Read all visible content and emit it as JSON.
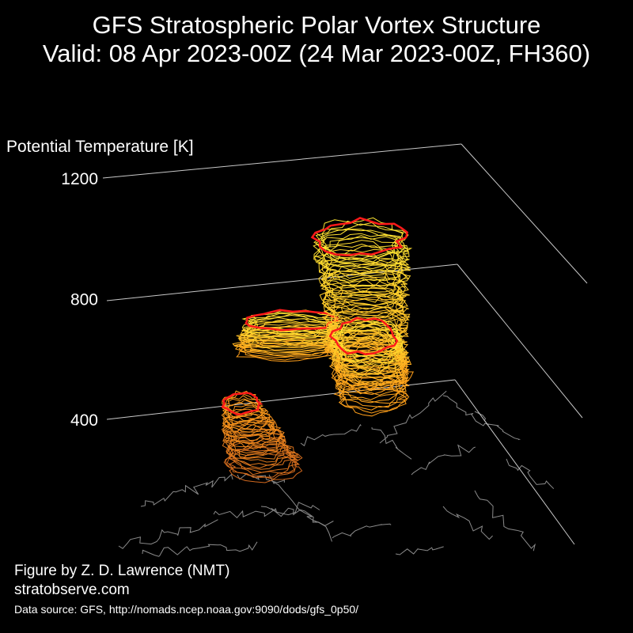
{
  "title": {
    "line1": "GFS Stratospheric Polar Vortex Structure",
    "line2": "Valid: 08 Apr 2023-00Z  (24 Mar 2023-00Z, FH360)"
  },
  "credits": {
    "figure_by": "Figure by Z. D. Lawrence (NMT)",
    "website": "stratobserve.com",
    "data_source": "Data source: GFS, http://nomads.ncep.noaa.gov:9090/dods/gfs_0p50/"
  },
  "colors": {
    "background": "#000000",
    "axis": "#c8c8c8",
    "coastline": "#8a8a8a",
    "edge_contour": "#ff1a1a",
    "low_level": "#d2691e",
    "mid_level": "#ff9f1a",
    "high_level": "#ffe633"
  },
  "chart_data": {
    "type": "3d-isosurface",
    "title": "GFS Stratospheric Polar Vortex Structure",
    "subtitle": "Valid: 08 Apr 2023-00Z  (24 Mar 2023-00Z, FH360)",
    "zlabel": "Potential Temperature [K]",
    "zticks": [
      400,
      800,
      1200
    ],
    "zlim": [
      400,
      1200
    ],
    "grid": true,
    "vortex_pieces": [
      {
        "name": "lower-west-lobe",
        "theta_range": [
          400,
          500
        ]
      },
      {
        "name": "middle-arm",
        "theta_range": [
          600,
          850
        ]
      },
      {
        "name": "main-column",
        "theta_range": [
          650,
          1100
        ]
      }
    ]
  }
}
